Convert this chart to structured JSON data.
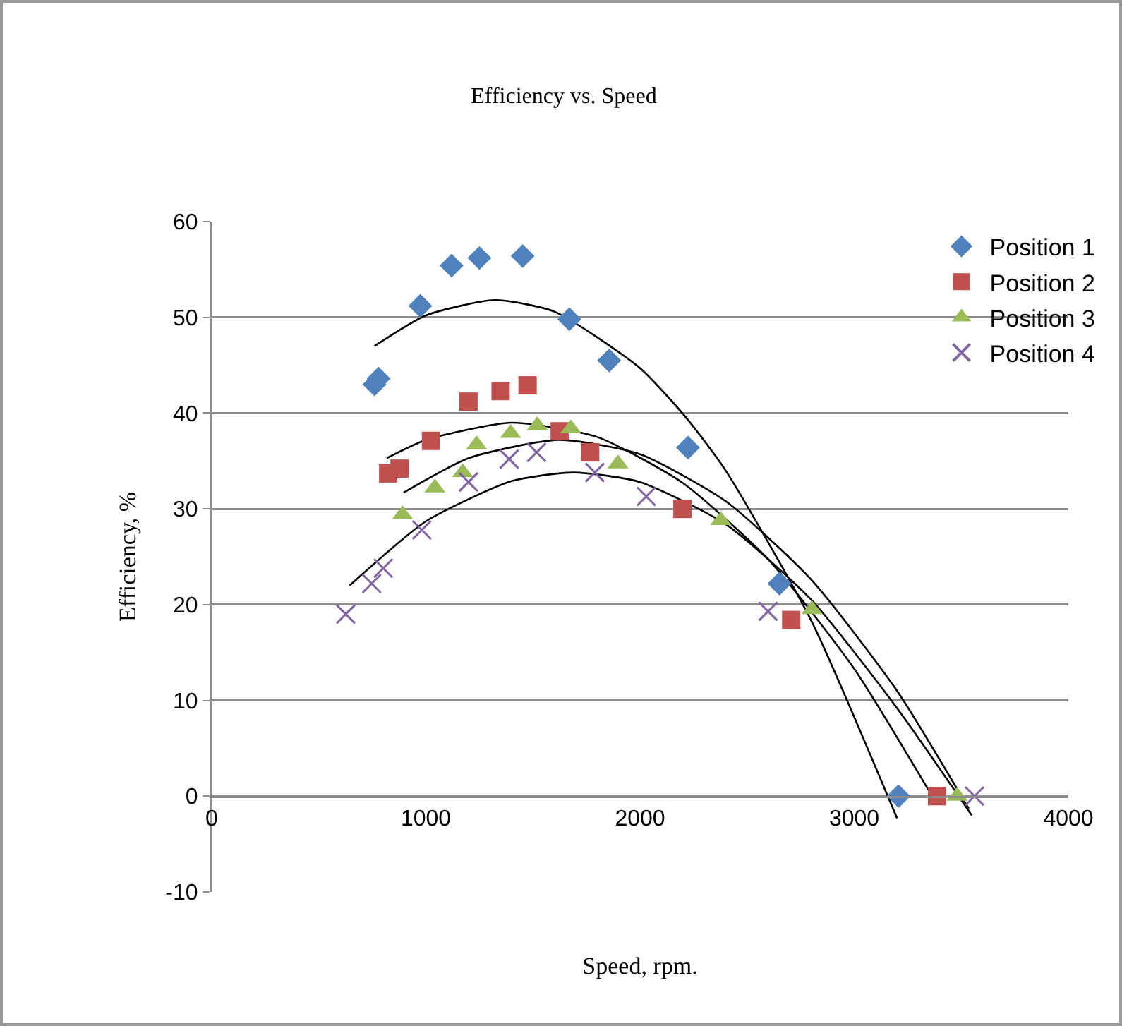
{
  "chart_data": {
    "type": "scatter",
    "title": "Efficiency vs. Speed",
    "xlabel": "Speed, rpm.",
    "ylabel": "Efficiency, %",
    "xlim": [
      0,
      4000
    ],
    "xticks": [
      0,
      1000,
      2000,
      3000,
      4000
    ],
    "ylim": [
      -10,
      60
    ],
    "yticks": [
      -10,
      0,
      10,
      20,
      30,
      40,
      50,
      60
    ],
    "grid": "y",
    "legend": "top right",
    "series": [
      {
        "name": "Position 1",
        "color": "#4f81bd",
        "marker": "diamond",
        "x": [
          760,
          779,
          974,
          1120,
          1250,
          1452,
          1670,
          1856,
          2224,
          2651,
          3207
        ],
        "values": [
          43,
          43.6,
          51.2,
          55.4,
          56.2,
          56.4,
          49.8,
          45.5,
          36.4,
          22.2,
          0
        ]
      },
      {
        "name": "Position 2",
        "color": "#c0504d",
        "marker": "square",
        "x": [
          824,
          877,
          1024,
          1199,
          1349,
          1475,
          1625,
          1767,
          2198,
          2706,
          3387
        ],
        "values": [
          33.7,
          34.2,
          37.1,
          41.2,
          42.3,
          42.9,
          38.1,
          35.9,
          30,
          18.4,
          0
        ]
      },
      {
        "name": "Position 3",
        "color": "#9bbb59",
        "marker": "triangle",
        "x": [
          891,
          1042,
          1172,
          1237,
          1396,
          1520,
          1677,
          1897,
          2377,
          2803,
          3481
        ],
        "values": [
          29.4,
          32.2,
          33.8,
          36.7,
          37.9,
          38.7,
          38.4,
          34.7,
          28.8,
          19.5,
          0
        ]
      },
      {
        "name": "Position 4",
        "color": "#8064a2",
        "marker": "cross",
        "x": [
          626,
          747,
          801,
          981,
          1199,
          1389,
          1517,
          1789,
          2029,
          2598,
          3562
        ],
        "values": [
          19,
          22.2,
          23.8,
          27.8,
          32.8,
          35.2,
          35.9,
          33.8,
          31.3,
          19.3,
          0
        ]
      },
      {
        "type": "line",
        "color": "#000000",
        "marker": "none",
        "line_style": "solid",
        "x": [
          760,
          1000,
          1320,
          1600,
          2000,
          2220,
          2400,
          2800,
          3200
        ],
        "values": [
          47,
          50.2,
          51.8,
          50.6,
          44.7,
          39.4,
          34,
          18.3,
          -2.3
        ]
      },
      {
        "type": "line",
        "color": "#000000",
        "marker": "none",
        "line_style": "solid",
        "x": [
          817,
          1000,
          1400,
          1800,
          2200,
          2600,
          3000,
          3380
        ],
        "values": [
          35.3,
          37.2,
          39,
          37.5,
          32.7,
          24.7,
          13.3,
          -0.6
        ]
      },
      {
        "type": "line",
        "color": "#000000",
        "marker": "none",
        "line_style": "solid",
        "x": [
          896,
          1200,
          1620,
          2000,
          2400,
          2800,
          3200,
          3535
        ],
        "values": [
          31.7,
          35.3,
          37.2,
          35.7,
          30.8,
          22.6,
          11,
          -1.3
        ]
      },
      {
        "type": "line",
        "color": "#000000",
        "marker": "none",
        "line_style": "solid",
        "x": [
          644,
          1000,
          1400,
          1690,
          2000,
          2400,
          2800,
          3200,
          3549
        ],
        "values": [
          22,
          28.7,
          32.9,
          33.8,
          32.8,
          28.4,
          20.5,
          9.2,
          -2
        ]
      }
    ]
  }
}
